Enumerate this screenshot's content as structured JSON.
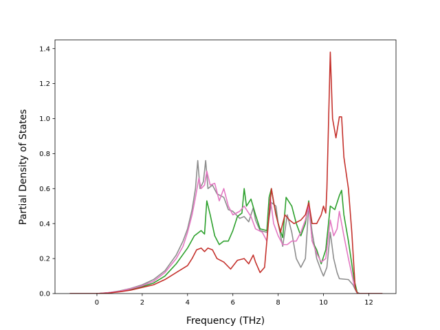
{
  "chart_data": {
    "type": "line",
    "title": "",
    "xlabel": "Frequency (THz)",
    "ylabel": "Partial Density of States",
    "xlim": [
      -1.85,
      13.2
    ],
    "ylim": [
      0,
      1.45
    ],
    "xticks": [
      0,
      2,
      4,
      6,
      8,
      10,
      12
    ],
    "yticks": [
      0.0,
      0.2,
      0.4,
      0.6,
      0.8,
      1.0,
      1.2,
      1.4
    ],
    "xtick_labels": [
      "0",
      "2",
      "4",
      "6",
      "8",
      "10",
      "12"
    ],
    "ytick_labels": [
      "0.0",
      "0.2",
      "0.4",
      "0.6",
      "0.8",
      "1.0",
      "1.2",
      "1.4"
    ],
    "grid": false,
    "legend": "none",
    "series": [
      {
        "color": "#8c8c8c",
        "points": [
          [
            -1.2,
            0
          ],
          [
            0,
            0
          ],
          [
            0.5,
            0.005
          ],
          [
            1,
            0.015
          ],
          [
            1.5,
            0.03
          ],
          [
            2,
            0.05
          ],
          [
            2.5,
            0.08
          ],
          [
            3,
            0.13
          ],
          [
            3.5,
            0.22
          ],
          [
            3.8,
            0.3
          ],
          [
            4,
            0.37
          ],
          [
            4.2,
            0.48
          ],
          [
            4.35,
            0.6
          ],
          [
            4.45,
            0.76
          ],
          [
            4.55,
            0.6
          ],
          [
            4.7,
            0.64
          ],
          [
            4.8,
            0.76
          ],
          [
            4.9,
            0.6
          ],
          [
            5.1,
            0.62
          ],
          [
            5.3,
            0.57
          ],
          [
            5.6,
            0.55
          ],
          [
            5.8,
            0.48
          ],
          [
            6.0,
            0.47
          ],
          [
            6.3,
            0.43
          ],
          [
            6.5,
            0.44
          ],
          [
            6.7,
            0.41
          ],
          [
            6.9,
            0.49
          ],
          [
            7.0,
            0.42
          ],
          [
            7.2,
            0.36
          ],
          [
            7.5,
            0.35
          ],
          [
            7.7,
            0.52
          ],
          [
            7.9,
            0.5
          ],
          [
            8.0,
            0.4
          ],
          [
            8.2,
            0.27
          ],
          [
            8.4,
            0.45
          ],
          [
            8.6,
            0.35
          ],
          [
            8.8,
            0.2
          ],
          [
            9.0,
            0.15
          ],
          [
            9.2,
            0.2
          ],
          [
            9.35,
            0.5
          ],
          [
            9.5,
            0.35
          ],
          [
            9.7,
            0.2
          ],
          [
            9.9,
            0.13
          ],
          [
            10.0,
            0.1
          ],
          [
            10.15,
            0.15
          ],
          [
            10.3,
            0.35
          ],
          [
            10.45,
            0.2
          ],
          [
            10.6,
            0.12
          ],
          [
            10.7,
            0.085
          ],
          [
            11.1,
            0.08
          ],
          [
            11.3,
            0.05
          ],
          [
            11.45,
            0.01
          ],
          [
            11.6,
            0
          ],
          [
            12.6,
            0
          ]
        ]
      },
      {
        "color": "#2ca02c",
        "points": [
          [
            -1.2,
            0
          ],
          [
            0,
            0
          ],
          [
            0.5,
            0.004
          ],
          [
            1,
            0.012
          ],
          [
            1.5,
            0.025
          ],
          [
            2,
            0.04
          ],
          [
            2.5,
            0.06
          ],
          [
            3,
            0.1
          ],
          [
            3.5,
            0.17
          ],
          [
            4,
            0.26
          ],
          [
            4.3,
            0.33
          ],
          [
            4.6,
            0.36
          ],
          [
            4.75,
            0.34
          ],
          [
            4.85,
            0.53
          ],
          [
            5.0,
            0.45
          ],
          [
            5.2,
            0.33
          ],
          [
            5.4,
            0.28
          ],
          [
            5.6,
            0.3
          ],
          [
            5.8,
            0.3
          ],
          [
            6.0,
            0.36
          ],
          [
            6.2,
            0.44
          ],
          [
            6.4,
            0.46
          ],
          [
            6.5,
            0.6
          ],
          [
            6.6,
            0.5
          ],
          [
            6.8,
            0.54
          ],
          [
            7.0,
            0.45
          ],
          [
            7.2,
            0.37
          ],
          [
            7.5,
            0.36
          ],
          [
            7.6,
            0.55
          ],
          [
            7.7,
            0.6
          ],
          [
            7.8,
            0.52
          ],
          [
            8.0,
            0.4
          ],
          [
            8.2,
            0.32
          ],
          [
            8.35,
            0.55
          ],
          [
            8.6,
            0.5
          ],
          [
            8.8,
            0.4
          ],
          [
            9.0,
            0.33
          ],
          [
            9.2,
            0.4
          ],
          [
            9.35,
            0.53
          ],
          [
            9.5,
            0.3
          ],
          [
            9.7,
            0.25
          ],
          [
            9.9,
            0.17
          ],
          [
            10.1,
            0.25
          ],
          [
            10.3,
            0.5
          ],
          [
            10.5,
            0.48
          ],
          [
            10.7,
            0.56
          ],
          [
            10.8,
            0.59
          ],
          [
            10.9,
            0.45
          ],
          [
            11.1,
            0.3
          ],
          [
            11.35,
            0.08
          ],
          [
            11.5,
            0
          ],
          [
            12.6,
            0
          ]
        ]
      },
      {
        "color": "#e377c2",
        "points": [
          [
            -1.2,
            0
          ],
          [
            0,
            0
          ],
          [
            0.5,
            0.005
          ],
          [
            1,
            0.013
          ],
          [
            1.5,
            0.028
          ],
          [
            2,
            0.045
          ],
          [
            2.5,
            0.07
          ],
          [
            3,
            0.12
          ],
          [
            3.5,
            0.2
          ],
          [
            3.8,
            0.27
          ],
          [
            4,
            0.35
          ],
          [
            4.2,
            0.45
          ],
          [
            4.35,
            0.55
          ],
          [
            4.5,
            0.66
          ],
          [
            4.6,
            0.6
          ],
          [
            4.75,
            0.62
          ],
          [
            4.85,
            0.7
          ],
          [
            5.0,
            0.62
          ],
          [
            5.2,
            0.63
          ],
          [
            5.4,
            0.53
          ],
          [
            5.6,
            0.6
          ],
          [
            5.8,
            0.5
          ],
          [
            6.0,
            0.45
          ],
          [
            6.3,
            0.47
          ],
          [
            6.5,
            0.5
          ],
          [
            6.8,
            0.44
          ],
          [
            7.0,
            0.37
          ],
          [
            7.3,
            0.35
          ],
          [
            7.5,
            0.3
          ],
          [
            7.65,
            0.55
          ],
          [
            7.8,
            0.4
          ],
          [
            8.0,
            0.33
          ],
          [
            8.2,
            0.28
          ],
          [
            8.4,
            0.28
          ],
          [
            8.6,
            0.3
          ],
          [
            8.8,
            0.3
          ],
          [
            9.0,
            0.35
          ],
          [
            9.2,
            0.42
          ],
          [
            9.35,
            0.5
          ],
          [
            9.5,
            0.3
          ],
          [
            9.7,
            0.23
          ],
          [
            9.9,
            0.18
          ],
          [
            10.1,
            0.2
          ],
          [
            10.3,
            0.42
          ],
          [
            10.45,
            0.33
          ],
          [
            10.6,
            0.37
          ],
          [
            10.7,
            0.47
          ],
          [
            10.9,
            0.33
          ],
          [
            11.1,
            0.2
          ],
          [
            11.35,
            0.05
          ],
          [
            11.5,
            0
          ],
          [
            12.6,
            0
          ]
        ]
      },
      {
        "color": "#c4302b",
        "points": [
          [
            -1.2,
            0
          ],
          [
            0,
            0
          ],
          [
            0.5,
            0.003
          ],
          [
            1,
            0.01
          ],
          [
            1.5,
            0.02
          ],
          [
            2,
            0.035
          ],
          [
            2.5,
            0.05
          ],
          [
            3,
            0.08
          ],
          [
            3.5,
            0.12
          ],
          [
            4,
            0.16
          ],
          [
            4.2,
            0.2
          ],
          [
            4.4,
            0.25
          ],
          [
            4.6,
            0.26
          ],
          [
            4.75,
            0.24
          ],
          [
            4.9,
            0.26
          ],
          [
            5.1,
            0.25
          ],
          [
            5.3,
            0.2
          ],
          [
            5.6,
            0.18
          ],
          [
            5.9,
            0.14
          ],
          [
            6.2,
            0.19
          ],
          [
            6.5,
            0.2
          ],
          [
            6.7,
            0.17
          ],
          [
            6.9,
            0.22
          ],
          [
            7.0,
            0.18
          ],
          [
            7.2,
            0.12
          ],
          [
            7.4,
            0.15
          ],
          [
            7.5,
            0.3
          ],
          [
            7.7,
            0.6
          ],
          [
            7.9,
            0.45
          ],
          [
            8.1,
            0.35
          ],
          [
            8.3,
            0.45
          ],
          [
            8.5,
            0.42
          ],
          [
            8.7,
            0.4
          ],
          [
            9.0,
            0.42
          ],
          [
            9.2,
            0.45
          ],
          [
            9.35,
            0.52
          ],
          [
            9.5,
            0.4
          ],
          [
            9.7,
            0.4
          ],
          [
            9.9,
            0.45
          ],
          [
            10.0,
            0.5
          ],
          [
            10.1,
            0.46
          ],
          [
            10.15,
            0.6
          ],
          [
            10.3,
            1.38
          ],
          [
            10.4,
            1.0
          ],
          [
            10.55,
            0.89
          ],
          [
            10.7,
            1.01
          ],
          [
            10.8,
            1.01
          ],
          [
            10.9,
            0.78
          ],
          [
            11.1,
            0.6
          ],
          [
            11.25,
            0.35
          ],
          [
            11.4,
            0.03
          ],
          [
            11.5,
            0
          ],
          [
            12.6,
            0
          ]
        ]
      }
    ]
  }
}
